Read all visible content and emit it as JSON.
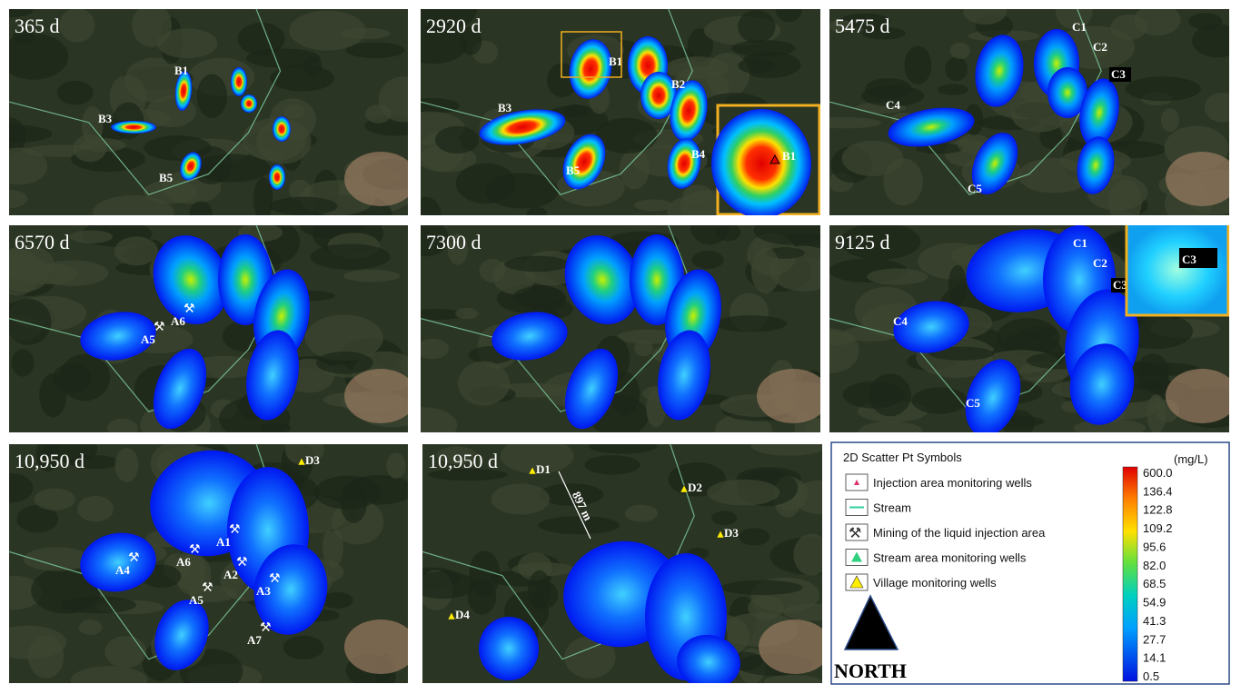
{
  "panels": [
    {
      "time": "365 d",
      "labels": [
        "B1",
        "B3",
        "B5"
      ]
    },
    {
      "time": "2920 d",
      "labels": [
        "B1",
        "B2",
        "B3",
        "B4",
        "B5"
      ],
      "inset_label": "B1"
    },
    {
      "time": "5475 d",
      "labels": [
        "C1",
        "C2",
        "C3",
        "C4",
        "C5"
      ]
    },
    {
      "time": "6570 d",
      "labels": [
        "A6",
        "A5"
      ]
    },
    {
      "time": "7300 d"
    },
    {
      "time": "9125 d",
      "labels": [
        "C1",
        "C2",
        "C3",
        "C4",
        "C5"
      ],
      "inset_label": "C3"
    },
    {
      "time": "10,950 d",
      "labels": [
        "D3",
        "A1",
        "A6",
        "A2",
        "A3",
        "A4",
        "A5",
        "A7"
      ]
    },
    {
      "time": "10,950 d",
      "labels": [
        "D1",
        "D2",
        "D3",
        "D4"
      ],
      "distance": "897 m"
    }
  ],
  "legend": {
    "title": "2D Scatter Pt Symbols",
    "items": [
      "Injection area monitoring wells",
      "Stream",
      "Mining of the liquid injection area",
      "Stream area monitoring wells",
      "Village monitoring wells"
    ],
    "unit": "(mg/L)",
    "scale": [
      "600.0",
      "136.4",
      "122.8",
      "109.2",
      "95.6",
      "82.0",
      "68.5",
      "54.9",
      "41.3",
      "27.7",
      "14.1",
      "0.5"
    ],
    "north": "NORTH"
  }
}
